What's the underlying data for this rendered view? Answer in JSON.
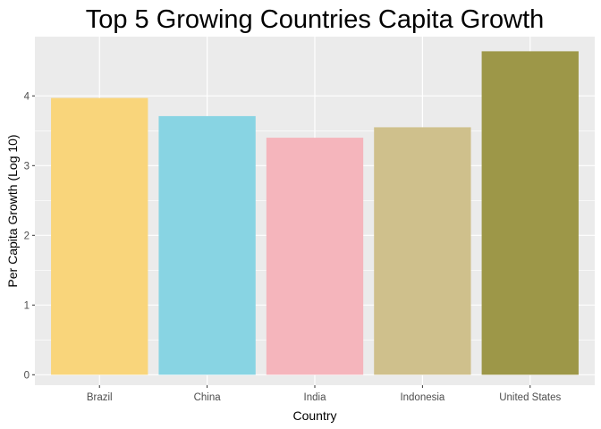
{
  "chart_data": {
    "type": "bar",
    "title": "Top 5 Growing Countries Capita Growth",
    "xlabel": "Country",
    "ylabel": "Per Capita Growth (Log 10)",
    "categories": [
      "Brazil",
      "China",
      "India",
      "Indonesia",
      "United States"
    ],
    "values": [
      3.97,
      3.71,
      3.4,
      3.55,
      4.64
    ],
    "colors": [
      "#F9D57B",
      "#88D4E3",
      "#F5B5BC",
      "#CFC08C",
      "#9D9748"
    ],
    "ylim": [
      -0.15,
      4.85
    ],
    "yticks": [
      0,
      1,
      2,
      3,
      4
    ],
    "grid": true,
    "legend": "none",
    "panel_background": "#EBEBEB",
    "gridline_color": "#FFFFFF"
  }
}
